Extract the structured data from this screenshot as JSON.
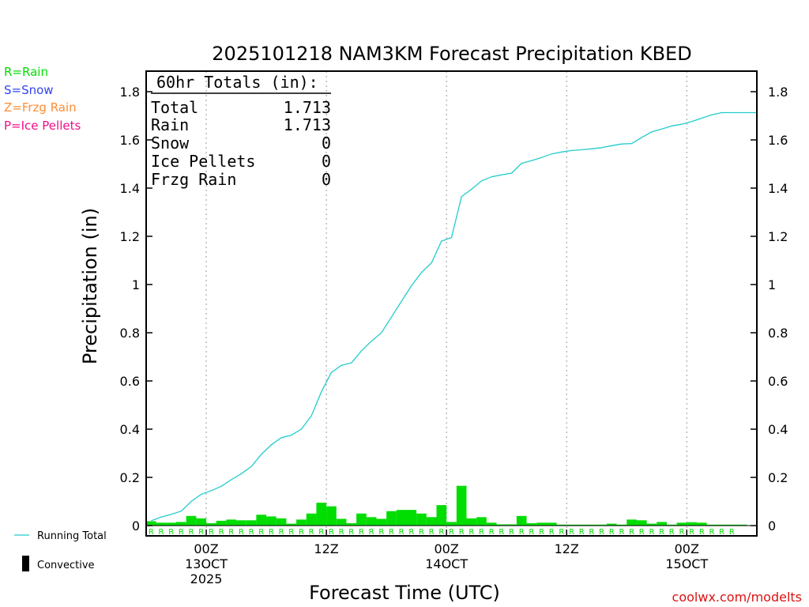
{
  "chart_data": {
    "type": "bar",
    "title": "2025101218 NAM3KM Forecast Precipitation KBED",
    "ylabel": "Precipitation (in)",
    "xlabel": "Forecast Time (UTC)",
    "ylim": [
      0,
      1.8
    ],
    "xlim": [
      0,
      61
    ],
    "yticks": [
      "0",
      "0.2",
      "0.4",
      "0.6",
      "0.8",
      "1",
      "1.2",
      "1.4",
      "1.6",
      "1.8"
    ],
    "ytick_values": [
      0,
      0.2,
      0.4,
      0.6,
      0.8,
      1.0,
      1.2,
      1.4,
      1.6,
      1.8
    ],
    "xticks": [
      {
        "hour": 6,
        "line1": "00Z",
        "line2": "13OCT",
        "line3": "2025"
      },
      {
        "hour": 18,
        "line1": "12Z",
        "line2": "",
        "line3": ""
      },
      {
        "hour": 30,
        "line1": "00Z",
        "line2": "14OCT",
        "line3": ""
      },
      {
        "hour": 42,
        "line1": "12Z",
        "line2": "",
        "line3": ""
      },
      {
        "hour": 54,
        "line1": "00Z",
        "line2": "15OCT",
        "line3": ""
      }
    ],
    "ptype_legend": [
      {
        "text": "R=Rain",
        "color": "#00dd00"
      },
      {
        "text": "S=Snow",
        "color": "#3344ee"
      },
      {
        "text": "Z=Frzg Rain",
        "color": "#ff8c33"
      },
      {
        "text": "P=Ice Pellets",
        "color": "#ee1188"
      }
    ],
    "series_legend": {
      "running_total": "Running Total",
      "convective": "Convective"
    },
    "totals_box": {
      "header": "60hr Totals (in):",
      "rows": [
        {
          "label": "Total",
          "value": "1.713"
        },
        {
          "label": "Rain",
          "value": "1.713"
        },
        {
          "label": "Snow",
          "value": "0"
        },
        {
          "label": "Ice Pellets",
          "value": "0"
        },
        {
          "label": "Frzg Rain",
          "value": "0"
        }
      ]
    },
    "ptype_symbol": "R",
    "ptype_count": 59,
    "hourly": [
      0.018,
      0.012,
      0.012,
      0.015,
      0.04,
      0.03,
      0.01,
      0.02,
      0.025,
      0.022,
      0.022,
      0.045,
      0.038,
      0.03,
      0.008,
      0.025,
      0.05,
      0.095,
      0.08,
      0.028,
      0.01,
      0.05,
      0.035,
      0.028,
      0.06,
      0.065,
      0.065,
      0.05,
      0.035,
      0.085,
      0.015,
      0.165,
      0.03,
      0.035,
      0.012,
      0.005,
      0.005,
      0.04,
      0.01,
      0.012,
      0.012,
      0.004,
      0.004,
      0.004,
      0.004,
      0.004,
      0.008,
      0.004,
      0.025,
      0.022,
      0.008,
      0.015,
      0.004,
      0.012,
      0.014,
      0.012,
      0.004,
      0.004,
      0.004,
      0.004
    ],
    "running_total": [
      [
        0.5,
        0.02
      ],
      [
        1.5,
        0.035
      ],
      [
        2.5,
        0.047
      ],
      [
        3.5,
        0.06
      ],
      [
        4.5,
        0.1
      ],
      [
        5.5,
        0.13
      ],
      [
        6.5,
        0.145
      ],
      [
        7.5,
        0.163
      ],
      [
        8.5,
        0.19
      ],
      [
        9.5,
        0.215
      ],
      [
        10.5,
        0.245
      ],
      [
        11.5,
        0.295
      ],
      [
        12.5,
        0.335
      ],
      [
        13.5,
        0.365
      ],
      [
        14.5,
        0.375
      ],
      [
        15.5,
        0.4
      ],
      [
        16.5,
        0.455
      ],
      [
        17.5,
        0.555
      ],
      [
        18.5,
        0.635
      ],
      [
        19.5,
        0.665
      ],
      [
        20.5,
        0.675
      ],
      [
        21.5,
        0.725
      ],
      [
        22.5,
        0.765
      ],
      [
        23.5,
        0.8
      ],
      [
        24.5,
        0.865
      ],
      [
        25.5,
        0.93
      ],
      [
        26.5,
        0.995
      ],
      [
        27.5,
        1.05
      ],
      [
        28.5,
        1.09
      ],
      [
        29.5,
        1.18
      ],
      [
        30.5,
        1.195
      ],
      [
        31.5,
        1.365
      ],
      [
        32.5,
        1.395
      ],
      [
        33.5,
        1.43
      ],
      [
        34.5,
        1.447
      ],
      [
        35.5,
        1.455
      ],
      [
        36.5,
        1.462
      ],
      [
        37.5,
        1.503
      ],
      [
        38.5,
        1.514
      ],
      [
        39.5,
        1.527
      ],
      [
        40.5,
        1.542
      ],
      [
        41.5,
        1.55
      ],
      [
        42.5,
        1.556
      ],
      [
        43.5,
        1.559
      ],
      [
        44.5,
        1.563
      ],
      [
        45.5,
        1.568
      ],
      [
        46.5,
        1.576
      ],
      [
        47.5,
        1.583
      ],
      [
        48.5,
        1.585
      ],
      [
        49.5,
        1.61
      ],
      [
        50.5,
        1.633
      ],
      [
        51.5,
        1.645
      ],
      [
        52.5,
        1.658
      ],
      [
        53.5,
        1.665
      ],
      [
        54.5,
        1.676
      ],
      [
        55.5,
        1.69
      ],
      [
        56.5,
        1.704
      ],
      [
        57.5,
        1.713
      ],
      [
        58.5,
        1.713
      ],
      [
        59.5,
        1.713
      ],
      [
        61,
        1.713
      ]
    ],
    "bar_color": "#00dd00",
    "line_color": "#22cccc"
  },
  "credit": "coolwx.com/modelts"
}
